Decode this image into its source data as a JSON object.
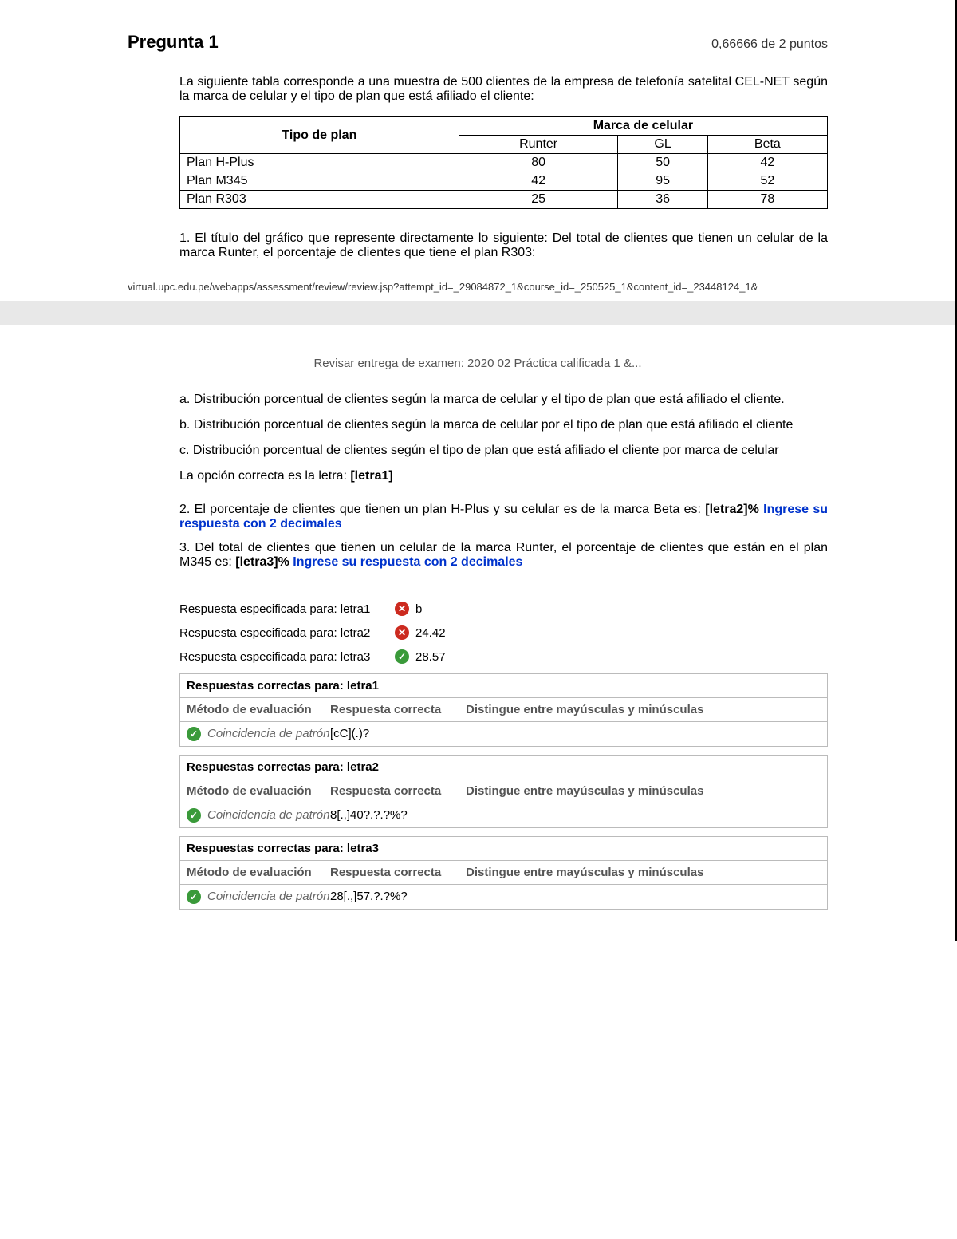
{
  "question": {
    "title": "Pregunta 1",
    "score": "0,66666 de 2 puntos",
    "intro": "La siguiente tabla corresponde a una muestra de 500 clientes de la empresa de telefonía satelital CEL-NET según la marca de celular y el tipo de plan que está afiliado el cliente:",
    "table": {
      "col1_header": "Tipo de plan",
      "group_header": "Marca de celular",
      "brands": [
        "Runter",
        "GL",
        "Beta"
      ],
      "rows": [
        {
          "plan": "Plan H-Plus",
          "v": [
            "80",
            "50",
            "42"
          ]
        },
        {
          "plan": "Plan M345",
          "v": [
            "42",
            "95",
            "52"
          ]
        },
        {
          "plan": "Plan R303",
          "v": [
            "25",
            "36",
            "78"
          ]
        }
      ]
    },
    "q1_text": "1. El título del gráfico que represente directamente lo siguiente: Del total de clientes que tienen un celular de la marca Runter, el porcentaje de clientes que tiene el plan R303:",
    "footer_url": "virtual.upc.edu.pe/webapps/assessment/review/review.jsp?attempt_id=_29084872_1&course_id=_250525_1&content_id=_23448124_1&",
    "review_title": "Revisar entrega de examen: 2020 02 Práctica calificada 1 &...",
    "options": {
      "a": "a. Distribución porcentual de clientes según la marca de celular y el tipo de plan que está afiliado el cliente.",
      "b": "b. Distribución porcentual de clientes según la marca de celular por el tipo de plan que está afiliado el cliente",
      "c": "c. Distribución porcentual de clientes según el tipo de plan que está afiliado el cliente por marca de celular"
    },
    "correct_prompt": "La opción correcta es la letra: [letra1]",
    "q2_text_a": "2. El porcentaje de clientes que tienen un plan H-Plus y su celular es de la marca Beta es: ",
    "q2_text_b": "[letra2]% ",
    "q2_note": "Ingrese su respuesta con 2 decimales",
    "q3_text_a": "3. Del total de clientes que tienen un celular de la marca Runter, el porcentaje de clientes que están en el plan M345 es: ",
    "q3_text_b": "[letra3]% ",
    "q3_note": "Ingrese su respuesta con 2 decimales"
  },
  "answers": {
    "specified": [
      {
        "label": "Respuesta especificada para: letra1",
        "status": "wrong",
        "value": "b"
      },
      {
        "label": "Respuesta especificada para: letra2",
        "status": "wrong",
        "value": "24.42"
      },
      {
        "label": "Respuesta especificada para: letra3",
        "status": "correct",
        "value": "28.57"
      }
    ],
    "correct_boxes": [
      {
        "title": "Respuestas correctas para: letra1",
        "pattern": "[cC](.)?"
      },
      {
        "title": "Respuestas correctas para: letra2",
        "pattern": "8[.,]40?.?.?%?"
      },
      {
        "title": "Respuestas correctas para: letra3",
        "pattern": "28[.,]57.?.?%?"
      }
    ],
    "headers": {
      "method": "Método de evaluación",
      "answer": "Respuesta correcta",
      "case": "Distingue entre mayúsculas y minúsculas",
      "pattern_match": "Coincidencia de patrón"
    }
  }
}
